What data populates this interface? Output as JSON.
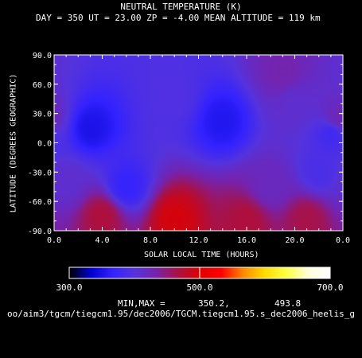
{
  "chart_data": {
    "type": "heatmap",
    "title": "NEUTRAL TEMPERATURE (K)",
    "subtitle": "DAY = 350   UT = 23.00  ZP =   -4.00  MEAN ALTITUDE = 119 km",
    "xlabel": "SOLAR LOCAL TIME (HOURS)",
    "ylabel": "LATITUDE (DEGREES GEOGRAPHIC)",
    "xlim": [
      0,
      24
    ],
    "ylim": [
      -90,
      90
    ],
    "x_ticks": [
      "0.0",
      "4.0",
      "8.0",
      "12.0",
      "16.0",
      "20.0",
      "0.0"
    ],
    "y_ticks": [
      "90.0",
      "60.0",
      "30.0",
      "0.0",
      "-30.0",
      "-60.0",
      "-90.0"
    ],
    "colorbar": {
      "min": 300,
      "max": 700,
      "ticks": [
        "300.0",
        "500.0",
        "700.0"
      ],
      "stops": [
        "#000000",
        "#0000cc",
        "#3322ff",
        "#5533dd",
        "#7722aa",
        "#aa1144",
        "#dd0000",
        "#ff0000",
        "#ff8800",
        "#ffdd00",
        "#ffff44",
        "#ffffdd",
        "#ffffff"
      ]
    },
    "min_value": 350.2,
    "max_value": 493.8,
    "minmax_label": "MIN,MAX =",
    "min_text": "350.2,",
    "max_text": "493.8",
    "features": [
      {
        "x": 3,
        "y": 15,
        "value": 352
      },
      {
        "x": 14,
        "y": 22,
        "value": 356
      },
      {
        "x": 23,
        "y": 10,
        "value": 380
      },
      {
        "x": 10,
        "y": 45,
        "value": 395
      },
      {
        "x": 19,
        "y": 72,
        "value": 430
      },
      {
        "x": 23.5,
        "y": 25,
        "value": 425
      },
      {
        "x": 20,
        "y": 40,
        "value": 410
      },
      {
        "x": 6,
        "y": -45,
        "value": 370
      },
      {
        "x": 10,
        "y": -78,
        "value": 493.8
      },
      {
        "x": 4,
        "y": -75,
        "value": 470
      },
      {
        "x": 16,
        "y": -80,
        "value": 470
      },
      {
        "x": 21,
        "y": -78,
        "value": 465
      },
      {
        "x": 18,
        "y": -45,
        "value": 420
      },
      {
        "x": 1,
        "y": -40,
        "value": 410
      },
      {
        "x": 22,
        "y": -30,
        "value": 390
      }
    ]
  },
  "path_text": "oo/aim3/tgcm/tiegcm1.95/dec2006/TGCM.tiegcm1.95.s_dec2006_heelis_g"
}
